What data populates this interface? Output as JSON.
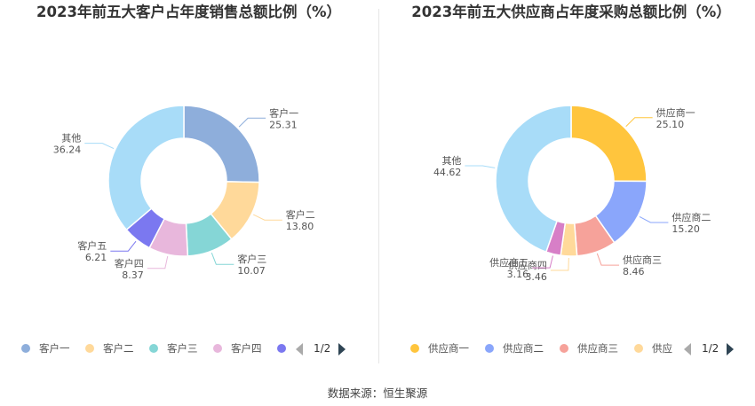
{
  "source": "数据来源：恒生聚源",
  "charts": [
    {
      "id": "customers",
      "title": "2023年前五大客户占年度销售总额比例（%）",
      "pager": "1/2",
      "chart_data": {
        "type": "pie",
        "donut": true,
        "categories": [
          "客户一",
          "客户二",
          "客户三",
          "客户四",
          "客户五",
          "其他"
        ],
        "values": [
          25.31,
          13.8,
          10.07,
          8.37,
          6.21,
          36.24
        ],
        "value_labels": [
          "25.31",
          "13.80",
          "10.07",
          "8.37",
          "6.21",
          "36.24"
        ],
        "colors": [
          "#8eaedb",
          "#ffd99a",
          "#85d6d6",
          "#e8b7dc",
          "#7b78f0",
          "#a8dcf8"
        ]
      },
      "legend_items": [
        "客户一",
        "客户二",
        "客户三",
        "客户四"
      ]
    },
    {
      "id": "suppliers",
      "title": "2023年前五大供应商占年度采购总额比例（%）",
      "pager": "1/2",
      "chart_data": {
        "type": "pie",
        "donut": true,
        "categories": [
          "供应商一",
          "供应商二",
          "供应商三",
          "供应商四",
          "供应商五",
          "其他"
        ],
        "values": [
          25.1,
          15.2,
          8.46,
          3.46,
          3.16,
          44.62
        ],
        "value_labels": [
          "25.10",
          "15.20",
          "8.46",
          "3.46",
          "3.16",
          "44.62"
        ],
        "colors": [
          "#ffc53d",
          "#8aa6fb",
          "#f6a29a",
          "#ffd99a",
          "#d77fc7",
          "#a8dcf8"
        ]
      },
      "legend_items": [
        "供应商一",
        "供应商二",
        "供应商三",
        "供应"
      ]
    }
  ]
}
